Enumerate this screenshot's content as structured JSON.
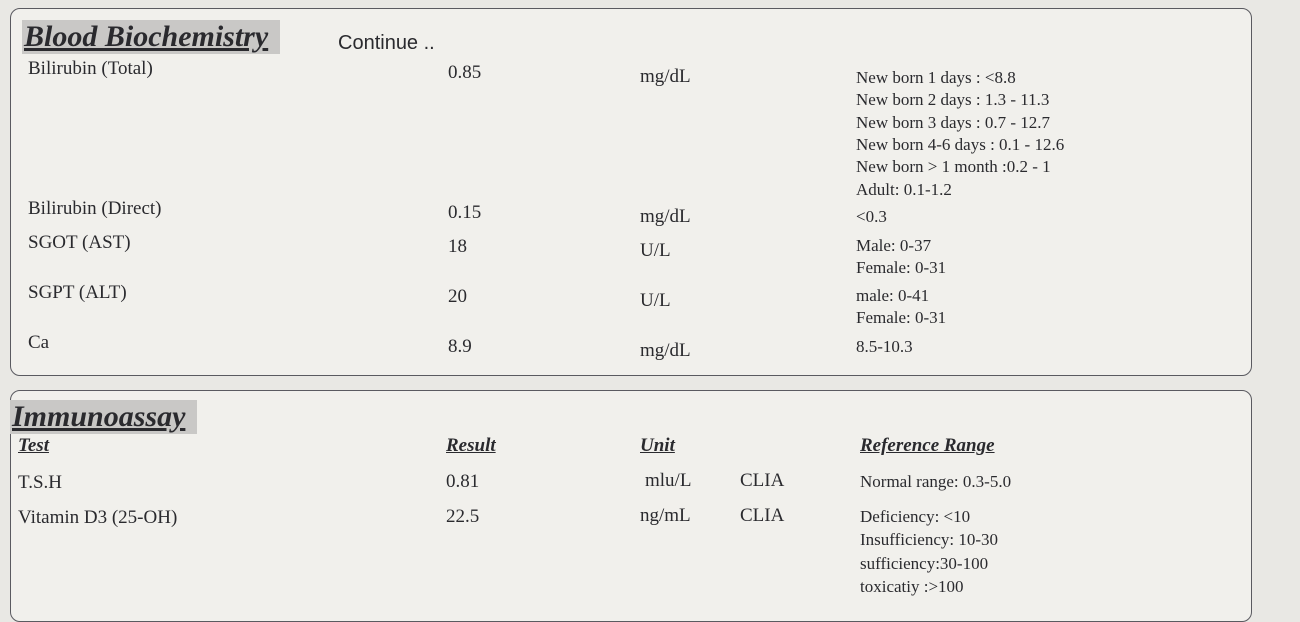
{
  "blood_biochemistry": {
    "title": "Blood Biochemistry",
    "subtitle": "Continue ..",
    "rows": [
      {
        "test": "Bilirubin (Total)",
        "result": "0.85",
        "unit": "mg/dL",
        "reference": [
          "New born 1 days : <8.8",
          "New born 2 days : 1.3 - 11.3",
          "New born 3 days : 0.7 - 12.7",
          "New born 4-6 days : 0.1 - 12.6",
          "New born > 1 month :0.2 - 1",
          "Adult: 0.1-1.2"
        ]
      },
      {
        "test": "Bilirubin (Direct)",
        "result": "0.15",
        "unit": "mg/dL",
        "reference": [
          "<0.3"
        ]
      },
      {
        "test": "SGOT (AST)",
        "result": "18",
        "unit": "U/L",
        "reference": [
          "Male: 0-37",
          "Female: 0-31"
        ]
      },
      {
        "test": "SGPT (ALT)",
        "result": "20",
        "unit": "U/L",
        "reference": [
          "male: 0-41",
          "Female: 0-31"
        ]
      },
      {
        "test": "Ca",
        "result": "8.9",
        "unit": "mg/dL",
        "reference": [
          "8.5-10.3"
        ]
      }
    ]
  },
  "immunoassay": {
    "title": "Immunoassay",
    "headers": [
      "Test",
      "Result",
      "Unit",
      "Reference Range"
    ],
    "rows": [
      {
        "test": "T.S.H",
        "result": "0.81",
        "unit": "mlu/L",
        "method": "CLIA",
        "reference": [
          "Normal range: 0.3-5.0"
        ]
      },
      {
        "test": "Vitamin D3 (25-OH)",
        "result": "22.5",
        "unit": "ng/mL",
        "method": "CLIA",
        "reference": [
          "Deficiency: <10",
          "Insufficiency: 10-30",
          "sufficiency:30-100",
          "toxicatiy :>100"
        ]
      }
    ]
  }
}
